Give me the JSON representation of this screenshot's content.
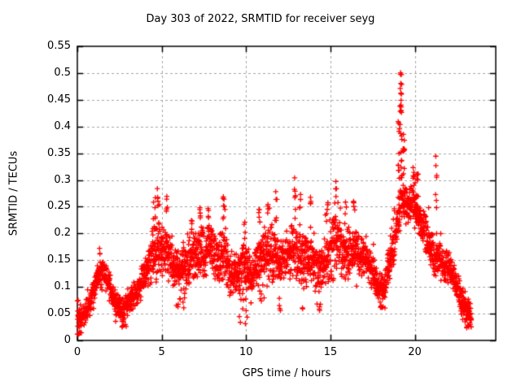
{
  "title": "Day 303 of 2022, SRMTID for receiver seyg",
  "axes": {
    "x": {
      "label": "GPS time / hours",
      "min": 0,
      "max": 24.8,
      "ticks": [
        0,
        5,
        10,
        15,
        20
      ],
      "tick_labels": [
        "0",
        "5",
        "10",
        "15",
        "20"
      ]
    },
    "y": {
      "label": "SRMTID / TECUs",
      "min": 0,
      "max": 0.55,
      "ticks": [
        0,
        0.05,
        0.1,
        0.15,
        0.2,
        0.25,
        0.3,
        0.35,
        0.4,
        0.45,
        0.5,
        0.55
      ],
      "tick_labels": [
        "0",
        "0.05",
        "0.1",
        "0.15",
        "0.2",
        "0.25",
        "0.3",
        "0.35",
        "0.4",
        "0.45",
        "0.5",
        "0.55"
      ]
    }
  },
  "style": {
    "marker_color": "#ff0000",
    "grid_color": "#a6a6a6",
    "frame_color": "#000000",
    "background": "#ffffff",
    "grid_on": true,
    "legend": "none"
  },
  "chart_data": {
    "type": "scatter",
    "marker": "plus",
    "series_name": "SRMTID",
    "x_unit": "hours",
    "y_unit": "TECUs",
    "xlim": [
      0,
      24.8
    ],
    "ylim": [
      0,
      0.55
    ],
    "t_start": 0,
    "t_end": 23.35,
    "points_per_hour": 120,
    "seed": 20221030,
    "y_max_observed": 0.51,
    "y_max_time": 19.2,
    "band": [
      [
        0.0,
        0.01,
        0.085
      ],
      [
        0.4,
        0.02,
        0.07
      ],
      [
        0.8,
        0.05,
        0.1
      ],
      [
        1.2,
        0.09,
        0.15
      ],
      [
        1.5,
        0.095,
        0.165
      ],
      [
        1.8,
        0.085,
        0.14
      ],
      [
        2.2,
        0.045,
        0.105
      ],
      [
        2.7,
        0.025,
        0.08
      ],
      [
        3.1,
        0.05,
        0.1
      ],
      [
        3.5,
        0.06,
        0.12
      ],
      [
        3.9,
        0.08,
        0.15
      ],
      [
        4.3,
        0.1,
        0.19
      ],
      [
        4.6,
        0.115,
        0.22
      ],
      [
        4.9,
        0.11,
        0.225
      ],
      [
        5.3,
        0.11,
        0.225
      ],
      [
        5.7,
        0.09,
        0.185
      ],
      [
        6.2,
        0.085,
        0.175
      ],
      [
        6.7,
        0.1,
        0.2
      ],
      [
        7.1,
        0.11,
        0.21
      ],
      [
        7.5,
        0.11,
        0.22
      ],
      [
        7.9,
        0.12,
        0.225
      ],
      [
        8.3,
        0.1,
        0.195
      ],
      [
        8.7,
        0.11,
        0.24
      ],
      [
        9.1,
        0.08,
        0.16
      ],
      [
        9.5,
        0.085,
        0.175
      ],
      [
        9.9,
        0.09,
        0.19
      ],
      [
        10.3,
        0.08,
        0.165
      ],
      [
        10.7,
        0.095,
        0.195
      ],
      [
        11.1,
        0.1,
        0.215
      ],
      [
        11.5,
        0.1,
        0.225
      ],
      [
        11.9,
        0.095,
        0.21
      ],
      [
        12.3,
        0.1,
        0.2
      ],
      [
        12.7,
        0.11,
        0.24
      ],
      [
        13.1,
        0.1,
        0.23
      ],
      [
        13.5,
        0.095,
        0.21
      ],
      [
        13.9,
        0.095,
        0.215
      ],
      [
        14.3,
        0.08,
        0.175
      ],
      [
        14.7,
        0.095,
        0.21
      ],
      [
        15.1,
        0.11,
        0.245
      ],
      [
        15.4,
        0.12,
        0.255
      ],
      [
        15.8,
        0.1,
        0.215
      ],
      [
        16.2,
        0.11,
        0.235
      ],
      [
        16.6,
        0.12,
        0.21
      ],
      [
        17.0,
        0.115,
        0.195
      ],
      [
        17.4,
        0.095,
        0.17
      ],
      [
        17.8,
        0.07,
        0.14
      ],
      [
        18.15,
        0.065,
        0.125
      ],
      [
        18.45,
        0.09,
        0.18
      ],
      [
        18.75,
        0.13,
        0.24
      ],
      [
        19.0,
        0.16,
        0.285
      ],
      [
        19.2,
        0.2,
        0.33
      ],
      [
        19.5,
        0.21,
        0.3
      ],
      [
        19.9,
        0.215,
        0.295
      ],
      [
        20.2,
        0.195,
        0.285
      ],
      [
        20.6,
        0.15,
        0.25
      ],
      [
        21.0,
        0.12,
        0.21
      ],
      [
        21.4,
        0.11,
        0.205
      ],
      [
        21.8,
        0.1,
        0.175
      ],
      [
        22.2,
        0.095,
        0.16
      ],
      [
        22.6,
        0.06,
        0.13
      ],
      [
        23.0,
        0.035,
        0.09
      ],
      [
        23.35,
        0.025,
        0.065
      ]
    ],
    "spikes": [
      [
        1.35,
        0.06,
        0.175,
        3
      ],
      [
        4.55,
        0.08,
        0.27,
        7
      ],
      [
        4.8,
        0.06,
        0.285,
        6
      ],
      [
        5.3,
        0.06,
        0.27,
        5
      ],
      [
        6.8,
        0.06,
        0.225,
        4
      ],
      [
        7.3,
        0.06,
        0.25,
        5
      ],
      [
        7.8,
        0.06,
        0.25,
        4
      ],
      [
        8.7,
        0.07,
        0.27,
        8
      ],
      [
        9.9,
        0.05,
        0.23,
        4
      ],
      [
        10.8,
        0.05,
        0.245,
        5
      ],
      [
        11.3,
        0.05,
        0.255,
        4
      ],
      [
        11.8,
        0.05,
        0.29,
        5
      ],
      [
        12.9,
        0.06,
        0.305,
        6
      ],
      [
        13.2,
        0.05,
        0.29,
        4
      ],
      [
        13.8,
        0.05,
        0.285,
        5
      ],
      [
        14.8,
        0.05,
        0.255,
        4
      ],
      [
        15.3,
        0.06,
        0.3,
        7
      ],
      [
        15.9,
        0.05,
        0.265,
        4
      ],
      [
        16.4,
        0.05,
        0.26,
        5
      ],
      [
        19.05,
        0.05,
        0.42,
        10
      ],
      [
        19.18,
        0.06,
        0.51,
        24
      ],
      [
        19.35,
        0.05,
        0.4,
        8
      ],
      [
        19.9,
        0.07,
        0.33,
        6
      ],
      [
        20.15,
        0.06,
        0.315,
        5
      ],
      [
        21.25,
        0.06,
        0.35,
        7
      ]
    ],
    "dips": [
      [
        0.15,
        0.15,
        0.012,
        6
      ],
      [
        2.75,
        0.15,
        0.025,
        5
      ],
      [
        5.95,
        0.15,
        0.06,
        5
      ],
      [
        6.35,
        0.1,
        0.06,
        4
      ],
      [
        9.85,
        0.25,
        0.025,
        10
      ],
      [
        10.85,
        0.08,
        0.035,
        4
      ],
      [
        12.05,
        0.08,
        0.04,
        4
      ],
      [
        13.35,
        0.08,
        0.05,
        3
      ],
      [
        14.35,
        0.08,
        0.055,
        4
      ],
      [
        18.1,
        0.15,
        0.06,
        6
      ],
      [
        22.95,
        0.2,
        0.022,
        6
      ],
      [
        23.25,
        0.1,
        0.025,
        5
      ]
    ]
  }
}
